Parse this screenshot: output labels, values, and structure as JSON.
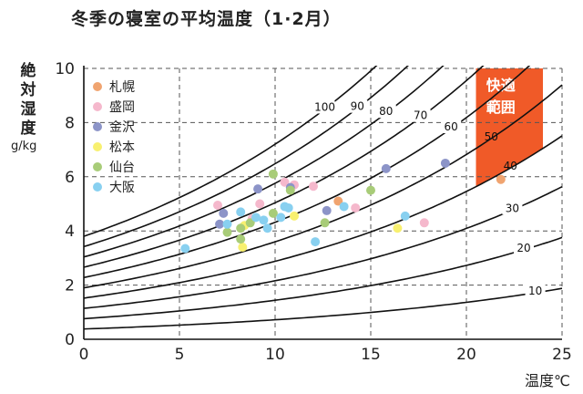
{
  "chart_data": {
    "type": "scatter",
    "title": "冬季の寝室の平均温度（1·2月）",
    "ylabel": "絶対湿度",
    "yunit": "g/kg",
    "xlabel": "温度℃",
    "xlim": [
      0,
      25
    ],
    "ylim": [
      0,
      10
    ],
    "xticks": [
      "0",
      "5",
      "10",
      "15",
      "20",
      "25"
    ],
    "yticks": [
      "0",
      "2",
      "4",
      "6",
      "8",
      "10"
    ],
    "grid": "dashed",
    "legend_position": "top-left",
    "comfort_zone": {
      "label_lines": [
        "快適",
        "範囲"
      ],
      "color": "#f05a28",
      "x_range": [
        20.5,
        24
      ],
      "rh_range": [
        40,
        60
      ],
      "y_top": 10
    },
    "rh_curves": [
      {
        "rh": 10,
        "label": "10"
      },
      {
        "rh": 20,
        "label": "20"
      },
      {
        "rh": 30,
        "label": "30"
      },
      {
        "rh": 40,
        "label": "40"
      },
      {
        "rh": 50,
        "label": "50"
      },
      {
        "rh": 60,
        "label": "60"
      },
      {
        "rh": 70,
        "label": "70"
      },
      {
        "rh": 80,
        "label": "80"
      },
      {
        "rh": 90,
        "label": "90"
      },
      {
        "rh": 100,
        "label": "100"
      }
    ],
    "series": [
      {
        "name": "札幌",
        "color": "#f0a470",
        "points": [
          [
            13.3,
            5.1
          ],
          [
            21.8,
            5.9
          ]
        ]
      },
      {
        "name": "盛岡",
        "color": "#f5b8cc",
        "points": [
          [
            7.0,
            4.95
          ],
          [
            9.2,
            5.0
          ],
          [
            10.5,
            5.8
          ],
          [
            11.0,
            5.7
          ],
          [
            12.0,
            5.65
          ],
          [
            14.2,
            4.85
          ],
          [
            17.8,
            4.3
          ],
          [
            8.8,
            4.45
          ]
        ]
      },
      {
        "name": "金沢",
        "color": "#8c94c8",
        "points": [
          [
            7.1,
            4.25
          ],
          [
            7.3,
            4.65
          ],
          [
            9.1,
            5.55
          ],
          [
            10.8,
            5.6
          ],
          [
            12.7,
            4.75
          ],
          [
            15.8,
            6.3
          ],
          [
            18.9,
            6.5
          ]
        ]
      },
      {
        "name": "松本",
        "color": "#f8f070",
        "points": [
          [
            8.3,
            3.4
          ],
          [
            8.4,
            4.2
          ],
          [
            11.0,
            4.55
          ],
          [
            16.4,
            4.1
          ]
        ]
      },
      {
        "name": "仙台",
        "color": "#a8cc78",
        "points": [
          [
            7.5,
            3.95
          ],
          [
            8.2,
            3.7
          ],
          [
            8.2,
            4.1
          ],
          [
            8.7,
            4.3
          ],
          [
            9.9,
            4.65
          ],
          [
            9.9,
            6.1
          ],
          [
            10.8,
            5.5
          ],
          [
            12.6,
            4.3
          ],
          [
            15.0,
            5.5
          ]
        ]
      },
      {
        "name": "大阪",
        "color": "#88d0f0",
        "points": [
          [
            5.3,
            3.35
          ],
          [
            7.5,
            4.25
          ],
          [
            8.2,
            4.7
          ],
          [
            9.0,
            4.5
          ],
          [
            9.4,
            4.4
          ],
          [
            9.6,
            4.1
          ],
          [
            10.3,
            4.5
          ],
          [
            10.5,
            4.9
          ],
          [
            10.7,
            4.85
          ],
          [
            12.1,
            3.6
          ],
          [
            13.6,
            4.9
          ],
          [
            16.8,
            4.55
          ]
        ]
      }
    ]
  }
}
